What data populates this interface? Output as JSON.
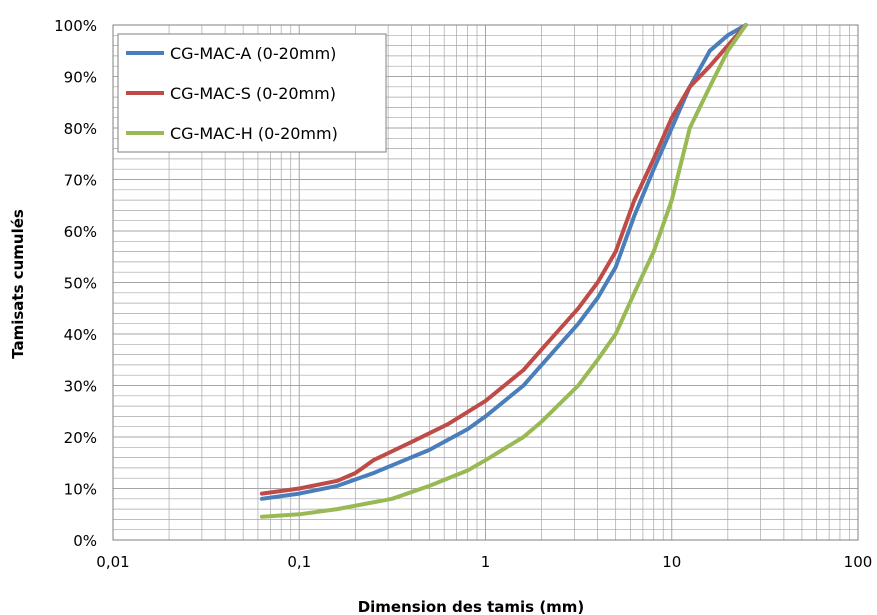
{
  "chart_data": {
    "type": "line",
    "xlabel": "Dimension des tamis (mm)",
    "ylabel": "Tamisats cumulés",
    "x_scale": "log",
    "xlim": [
      0.01,
      100
    ],
    "ylim": [
      0,
      100
    ],
    "x_tick_labels": [
      "0,01",
      "0,1",
      "1",
      "10",
      "100"
    ],
    "y_tick_labels": [
      "0%",
      "10%",
      "20%",
      "30%",
      "40%",
      "50%",
      "60%",
      "70%",
      "80%",
      "90%",
      "100%"
    ],
    "grid": "major and minor",
    "legend_position": "top-left",
    "series": [
      {
        "name": "CG-MAC-A (0-20mm)",
        "color": "#4a7ebb",
        "points": [
          [
            0.063,
            8
          ],
          [
            0.1,
            9
          ],
          [
            0.16,
            10.5
          ],
          [
            0.25,
            13
          ],
          [
            0.315,
            14.5
          ],
          [
            0.5,
            17.5
          ],
          [
            0.8,
            21.5
          ],
          [
            1,
            24
          ],
          [
            1.6,
            30
          ],
          [
            2,
            34
          ],
          [
            3.15,
            42
          ],
          [
            4,
            47
          ],
          [
            5,
            53
          ],
          [
            6.3,
            63
          ],
          [
            8,
            72
          ],
          [
            10,
            80
          ],
          [
            12.5,
            88
          ],
          [
            16,
            95
          ],
          [
            20,
            98
          ],
          [
            25,
            100
          ]
        ]
      },
      {
        "name": "CG-MAC-S (0-20mm)",
        "color": "#be4b48",
        "points": [
          [
            0.063,
            9
          ],
          [
            0.1,
            10
          ],
          [
            0.16,
            11.5
          ],
          [
            0.2,
            13
          ],
          [
            0.25,
            15.5
          ],
          [
            0.4,
            19
          ],
          [
            0.63,
            22.5
          ],
          [
            1,
            27
          ],
          [
            1.6,
            33
          ],
          [
            2,
            37
          ],
          [
            3.15,
            45
          ],
          [
            4,
            50
          ],
          [
            5,
            56
          ],
          [
            6.3,
            66
          ],
          [
            8,
            74
          ],
          [
            10,
            82
          ],
          [
            12.5,
            88
          ],
          [
            16,
            92
          ],
          [
            20,
            96
          ],
          [
            25,
            100
          ]
        ]
      },
      {
        "name": "CG-MAC-H (0-20mm)",
        "color": "#98b954",
        "points": [
          [
            0.063,
            4.5
          ],
          [
            0.1,
            5
          ],
          [
            0.16,
            6
          ],
          [
            0.315,
            8
          ],
          [
            0.5,
            10.5
          ],
          [
            0.8,
            13.5
          ],
          [
            1,
            15.5
          ],
          [
            1.6,
            20
          ],
          [
            2,
            23
          ],
          [
            3.15,
            30
          ],
          [
            4,
            35
          ],
          [
            5,
            40
          ],
          [
            6.3,
            48
          ],
          [
            8,
            56
          ],
          [
            10,
            66
          ],
          [
            12.5,
            80
          ],
          [
            16,
            88
          ],
          [
            20,
            95
          ],
          [
            25,
            100
          ]
        ]
      }
    ]
  }
}
